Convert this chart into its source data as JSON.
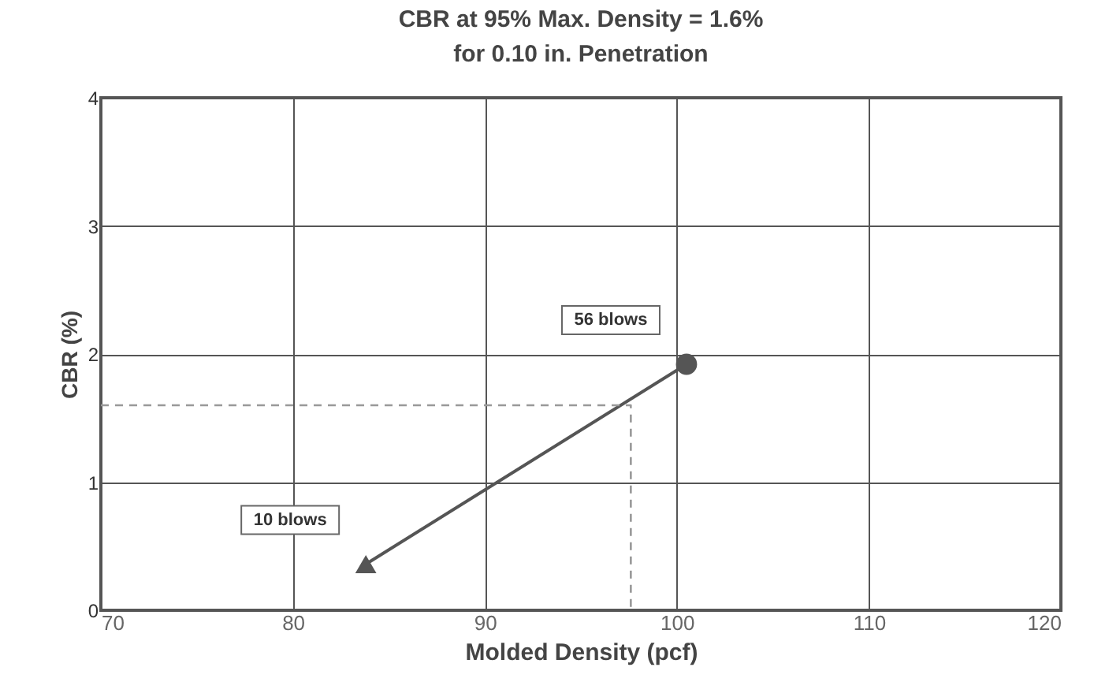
{
  "chart_data": {
    "type": "line",
    "title": [
      "CBR at 95% Max. Density = 1.6%",
      "for 0.10 in. Penetration"
    ],
    "xlabel": "Molded Density (pcf)",
    "ylabel": "CBR (%)",
    "xlim": [
      70,
      120
    ],
    "xticks": [
      70,
      80,
      90,
      100,
      110,
      120
    ],
    "ylim": [
      0,
      4
    ],
    "yticks": [
      0,
      1,
      2,
      3,
      4
    ],
    "grid": true,
    "series": [
      {
        "color": "#555555",
        "x": [
          83.8,
          100.5
        ],
        "values": [
          0.36,
          1.92
        ],
        "line_style": "solid"
      },
      {
        "type": "line",
        "color": "#999999",
        "x": [
          70,
          97.6,
          97.6
        ],
        "values": [
          1.6,
          1.6,
          0
        ],
        "line_style": "dashed"
      },
      {
        "type": "scatter",
        "name": "10 blows",
        "color": "#555555",
        "x": [
          83.8
        ],
        "values": [
          0.36
        ],
        "marker": "triangle"
      },
      {
        "type": "scatter",
        "name": "56 blows",
        "color": "#555555",
        "x": [
          100.5
        ],
        "values": [
          1.92
        ],
        "marker": "circle"
      }
    ]
  }
}
